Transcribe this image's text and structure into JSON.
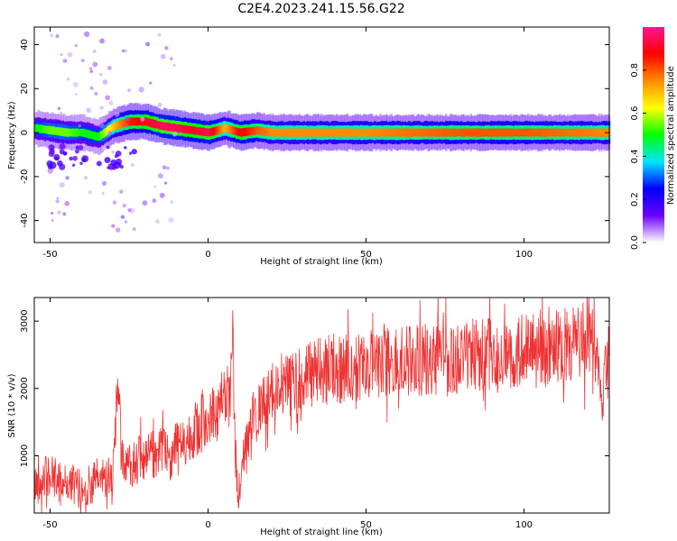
{
  "title": "C2E4.2023.241.15.56.G22",
  "chart_data": [
    {
      "type": "heatmap",
      "xlabel": "Height of straight line (km)",
      "ylabel": "Frequency (Hz)",
      "xlim": [
        -55,
        127
      ],
      "ylim": [
        -50,
        48
      ],
      "xticks": [
        -50,
        0,
        50,
        100
      ],
      "yticks": [
        -40,
        -20,
        0,
        20,
        40
      ],
      "colorbar": {
        "label": "Normalized spectral amplitude",
        "range": [
          0,
          1
        ],
        "ticks": [
          0.0,
          0.2,
          0.4,
          0.6,
          0.8
        ],
        "colors": [
          "#ffffff",
          "#6a00ff",
          "#0000ff",
          "#00e5ff",
          "#00ff00",
          "#ffff00",
          "#ff8c00",
          "#ff0000",
          "#ff1493"
        ]
      },
      "ridge": {
        "x": [
          -55,
          -50,
          -45,
          -40,
          -35,
          -30,
          -25,
          -20,
          -15,
          -10,
          -5,
          0,
          5,
          10,
          15,
          20,
          30,
          50,
          80,
          100,
          127
        ],
        "freq_hz": [
          2,
          1,
          0,
          0,
          -2,
          3,
          5,
          5,
          3,
          2,
          1,
          0,
          2,
          0,
          1,
          0,
          0,
          0,
          0,
          0,
          0
        ],
        "amplitude": [
          0.5,
          0.55,
          0.55,
          0.5,
          0.5,
          0.7,
          0.85,
          0.9,
          0.95,
          0.95,
          0.9,
          0.95,
          0.7,
          0.9,
          0.8,
          0.75,
          0.75,
          0.75,
          0.8,
          0.8,
          0.75
        ]
      }
    },
    {
      "type": "line",
      "xlabel": "Height of straight line (km)",
      "ylabel": "SNR (10 * v/v)",
      "xlim": [
        -55,
        127
      ],
      "ylim": [
        150,
        3350
      ],
      "xticks": [
        -50,
        0,
        50,
        100
      ],
      "yticks": [
        1000,
        2000,
        3000
      ],
      "series": [
        {
          "color": "#ee3333",
          "x": [
            -55,
            -52,
            -48,
            -45,
            -42,
            -40,
            -38,
            -35,
            -32,
            -30,
            -28.5,
            -27.5,
            -26,
            -24,
            -22,
            -20,
            -18,
            -15,
            -12,
            -10,
            -8,
            -6,
            -4,
            -2,
            0,
            2,
            4,
            5.5,
            7,
            7.8,
            8.5,
            9.5,
            10.5,
            11.5,
            13,
            15,
            17,
            19,
            21,
            24,
            28,
            32,
            36,
            40,
            45,
            50,
            55,
            60,
            65,
            70,
            75,
            80,
            85,
            90,
            95,
            100,
            105,
            110,
            115,
            118,
            121,
            122.5,
            123.5,
            124.5,
            126,
            127
          ],
          "y": [
            550,
            700,
            650,
            600,
            550,
            500,
            550,
            650,
            700,
            750,
            2200,
            1000,
            850,
            900,
            950,
            900,
            1000,
            1050,
            1000,
            1150,
            1200,
            1300,
            1400,
            1500,
            1550,
            1650,
            1750,
            1950,
            1800,
            2800,
            1200,
            300,
            700,
            1100,
            1300,
            1600,
            1700,
            1850,
            1950,
            2050,
            2100,
            2200,
            2250,
            2300,
            2300,
            2350,
            2350,
            2400,
            2400,
            2450,
            2450,
            2450,
            2500,
            2500,
            2500,
            2550,
            2550,
            2600,
            2650,
            2700,
            2750,
            2600,
            2300,
            1700,
            2300,
            2350
          ]
        }
      ]
    }
  ]
}
